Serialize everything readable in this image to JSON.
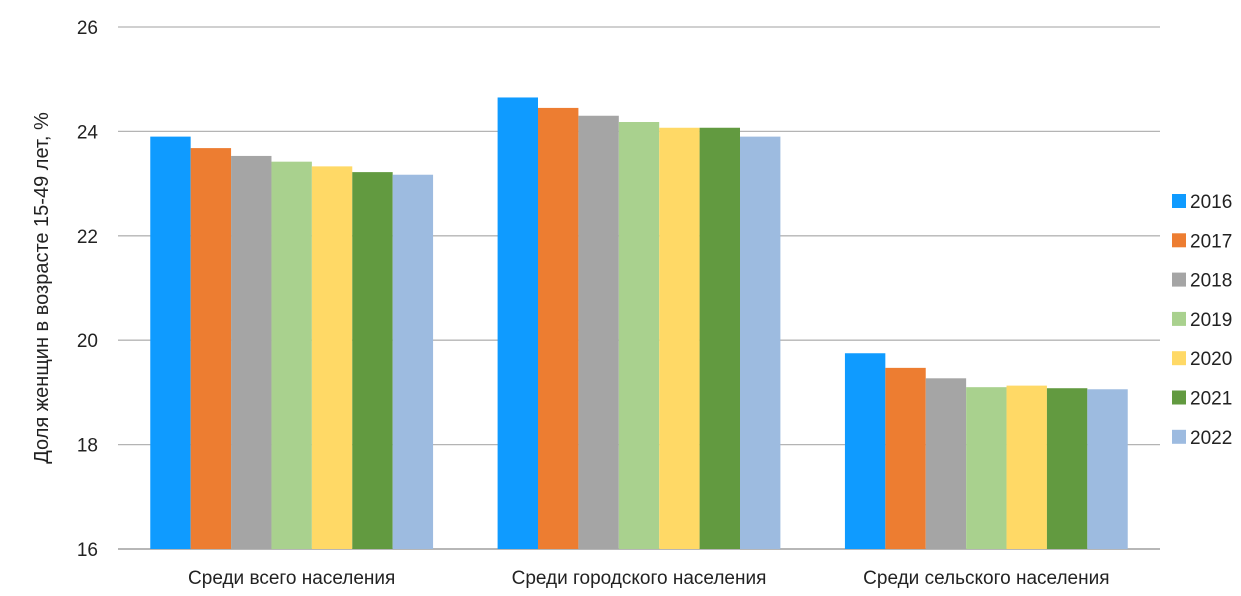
{
  "chart_data": {
    "type": "bar",
    "title": "",
    "xlabel": "",
    "ylabel": "Доля женщин в возрасте 15-49 лет, %",
    "ylim": [
      16,
      26
    ],
    "yticks": [
      16,
      18,
      20,
      22,
      24,
      26
    ],
    "grid": true,
    "legend_position": "right",
    "categories": [
      "Среди всего населения",
      "Среди городского населения",
      "Среди сельского населения"
    ],
    "series": [
      {
        "name": "2016",
        "color": "#0F9BFF",
        "values": [
          23.9,
          24.65,
          19.75
        ]
      },
      {
        "name": "2017",
        "color": "#ED7D31",
        "values": [
          23.68,
          24.45,
          19.47
        ]
      },
      {
        "name": "2018",
        "color": "#A5A5A5",
        "values": [
          23.53,
          24.3,
          19.27
        ]
      },
      {
        "name": "2019",
        "color": "#A9D18E",
        "values": [
          23.42,
          24.18,
          19.1
        ]
      },
      {
        "name": "2020",
        "color": "#FFD966",
        "values": [
          23.33,
          24.07,
          19.13
        ]
      },
      {
        "name": "2021",
        "color": "#629A40",
        "values": [
          23.22,
          24.07,
          19.08
        ]
      },
      {
        "name": "2022",
        "color": "#9DBBE0",
        "values": [
          23.17,
          23.9,
          19.06
        ]
      }
    ]
  }
}
